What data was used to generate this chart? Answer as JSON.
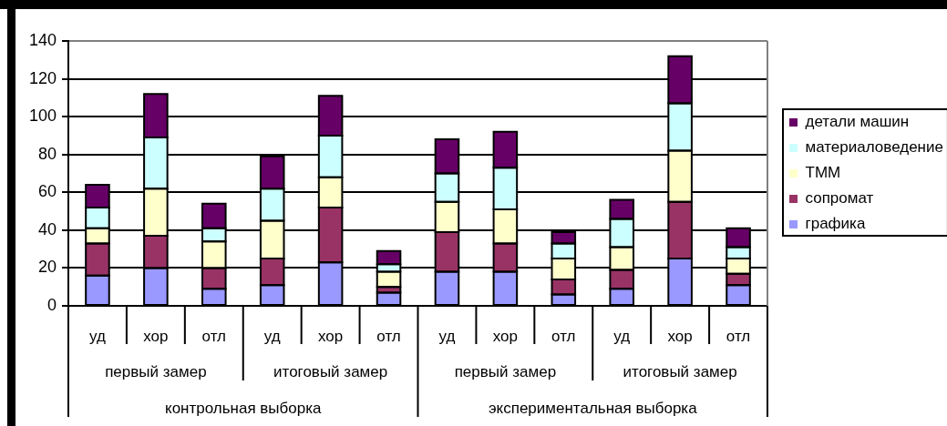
{
  "chart_data": {
    "type": "bar",
    "stacked": true,
    "categories": [
      "уд",
      "хор",
      "отл",
      "уд",
      "хор",
      "отл",
      "уд",
      "хор",
      "отл",
      "уд",
      "хор",
      "отл"
    ],
    "series": [
      {
        "name": "графика",
        "color": "#9999ff",
        "values": [
          16,
          20,
          9,
          11,
          23,
          7,
          18,
          18,
          6,
          9,
          25,
          11
        ]
      },
      {
        "name": "сопромат",
        "color": "#993366",
        "values": [
          17,
          17,
          11,
          14,
          29,
          3,
          21,
          15,
          8,
          10,
          30,
          6
        ]
      },
      {
        "name": "ТММ",
        "color": "#ffffcc",
        "values": [
          8,
          25,
          14,
          20,
          16,
          8,
          16,
          18,
          11,
          12,
          27,
          8
        ]
      },
      {
        "name": "материаловедение",
        "color": "#ccffff",
        "values": [
          11,
          27,
          7,
          17,
          22,
          4,
          15,
          22,
          8,
          15,
          25,
          6
        ]
      },
      {
        "name": "детали машин",
        "color": "#660066",
        "values": [
          12,
          23,
          13,
          17,
          21,
          7,
          18,
          19,
          6,
          10,
          25,
          10
        ]
      }
    ],
    "ylim": [
      0,
      140
    ],
    "yticks": [
      0,
      20,
      40,
      60,
      80,
      100,
      120,
      140
    ],
    "grid": "y",
    "legend": "right",
    "annotations": [
      "первый замер",
      "итоговый замер",
      "первый замер",
      "итоговый замер",
      "контрольная выборка",
      "экспериментальная выборка"
    ]
  }
}
